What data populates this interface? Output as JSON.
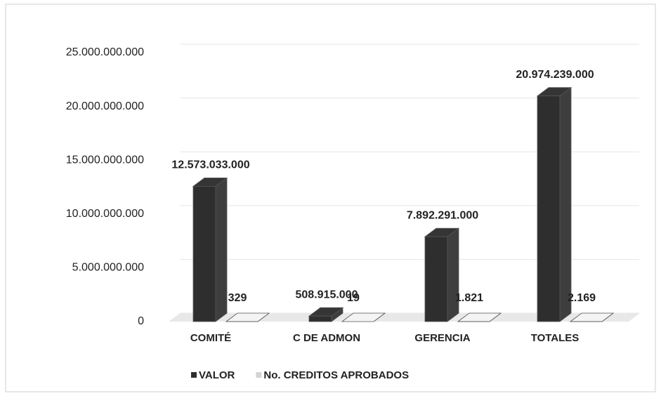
{
  "chart_data": {
    "type": "bar3d",
    "categories": [
      "COMITÉ",
      "C  DE ADMON",
      "GERENCIA",
      "TOTALES"
    ],
    "series": [
      {
        "name": "VALOR",
        "color": "#2e2e2e",
        "values": [
          12573033000,
          508915000,
          7892291000,
          20974239000
        ],
        "value_labels": [
          "12.573.033.000",
          "508.915.000",
          "7.892.291.000",
          "20.974.239.000"
        ]
      },
      {
        "name": "No. CREDITOS APROBADOS",
        "color": "#d4d4d4",
        "values": [
          329,
          19,
          1821,
          2169
        ],
        "value_labels": [
          "329",
          "19",
          "1.821",
          "2.169"
        ]
      }
    ],
    "ylim": [
      0,
      25000000000
    ],
    "yticks": [
      0,
      {
        "value": 5000000000,
        "label": "5.000.000.000"
      },
      {
        "value": 10000000000,
        "label": "10.000.000.000"
      },
      {
        "value": 15000000000,
        "label": "15.000.000.000"
      },
      {
        "value": 20000000000,
        "label": "20.000.000.000"
      },
      {
        "value": 25000000000,
        "label": "25.000.000.000"
      }
    ],
    "grid": true,
    "legend": "bottom"
  }
}
